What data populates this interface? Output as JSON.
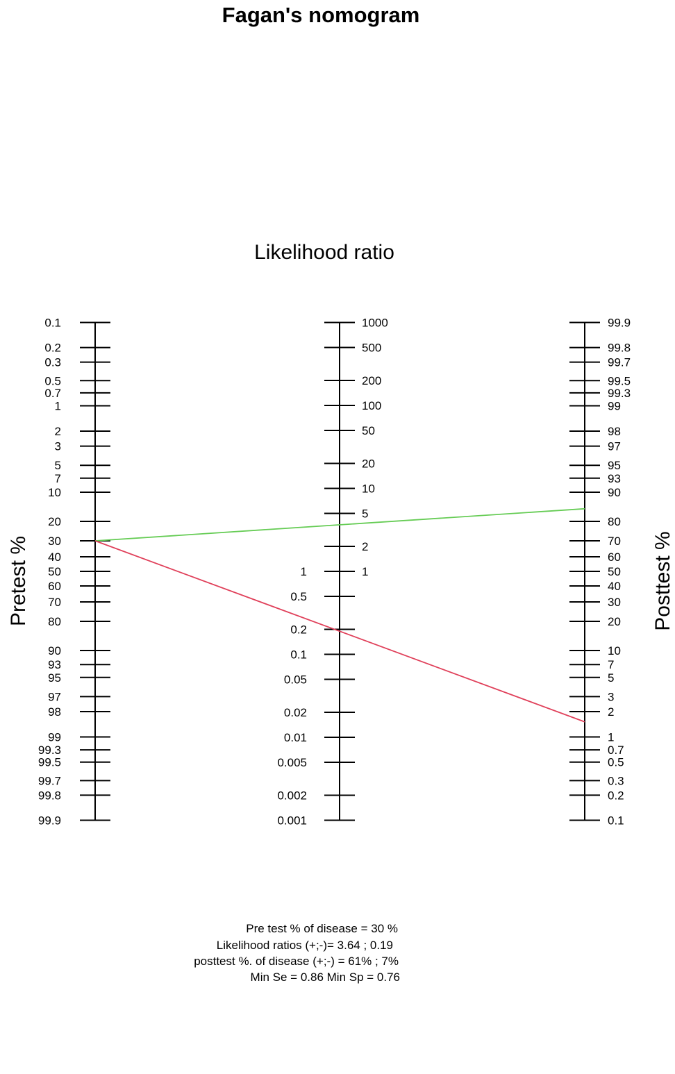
{
  "chart_data": {
    "type": "nomogram",
    "title": "Fagan's nomogram",
    "pretest_axis": {
      "label": "Pretest %",
      "ticks": [
        "0.1",
        "0.2",
        "0.3",
        "0.5",
        "0.7",
        "1",
        "2",
        "3",
        "5",
        "7",
        "10",
        "20",
        "30",
        "40",
        "50",
        "60",
        "70",
        "80",
        "90",
        "93",
        "95",
        "97",
        "98",
        "99",
        "99.3",
        "99.5",
        "99.7",
        "99.8",
        "99.9"
      ]
    },
    "likelihood_ratio_axis": {
      "label": "Likelihood ratio",
      "ticks_positive": [
        "1000",
        "500",
        "200",
        "100",
        "50",
        "20",
        "10",
        "5",
        "2",
        "1"
      ],
      "ticks_negative": [
        "1",
        "0.5",
        "0.2",
        "0.1",
        "0.05",
        "0.02",
        "0.01",
        "0.005",
        "0.002",
        "0.001"
      ]
    },
    "posttest_axis": {
      "label": "Posttest %",
      "ticks": [
        "99.9",
        "99.8",
        "99.7",
        "99.5",
        "99.3",
        "99",
        "98",
        "97",
        "95",
        "93",
        "90",
        "80",
        "70",
        "60",
        "50",
        "40",
        "30",
        "20",
        "10",
        "7",
        "5",
        "3",
        "2",
        "1",
        "0.7",
        "0.5",
        "0.3",
        "0.2",
        "0.1"
      ]
    },
    "pretest_probability": 30,
    "lines": [
      {
        "name": "positive",
        "likelihood_ratio": 3.64,
        "posttest": 61,
        "color": "#66cc55"
      },
      {
        "name": "negative",
        "likelihood_ratio": 0.19,
        "posttest": 7,
        "color": "#e0405a"
      }
    ],
    "notes": [
      "Pre test % of disease = 30 %",
      "Likelihood ratios (+;-)= 3.64 ; 0.19",
      "posttest %. of disease (+;-) = 61% ; 7%",
      "Min Se = 0.86 Min Sp = 0.76"
    ]
  }
}
